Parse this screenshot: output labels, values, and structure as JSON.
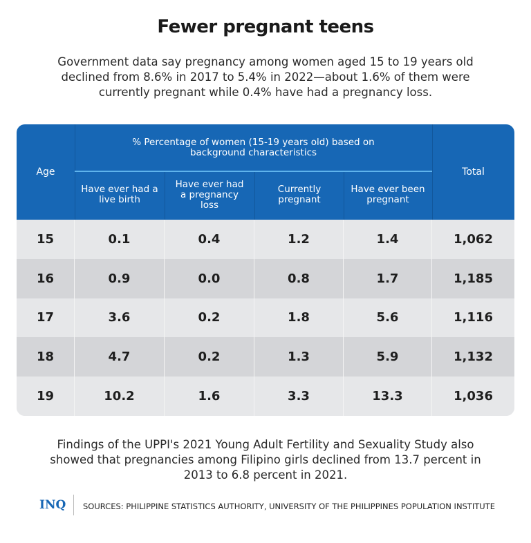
{
  "title": "Fewer pregnant teens",
  "subtitle": "Government data say pregnancy among women aged 15 to 19 years old declined from 8.6% in 2017 to 5.4% in 2022—about 1.6% of them were currently pregnant while 0.4% have had a pregnancy loss.",
  "chart_data": {
    "type": "table",
    "group_header": "% Percentage of women (15-19 years old) based on background characteristics",
    "columns": [
      "Age",
      "Have ever had a live birth",
      "Have ever had a pregnancy loss",
      "Currently pregnant",
      "Have ever been pregnant",
      "Total"
    ],
    "rows": [
      [
        "15",
        "0.1",
        "0.4",
        "1.2",
        "1.4",
        "1,062"
      ],
      [
        "16",
        "0.9",
        "0.0",
        "0.8",
        "1.7",
        "1,185"
      ],
      [
        "17",
        "3.6",
        "0.2",
        "1.8",
        "5.6",
        "1,116"
      ],
      [
        "18",
        "4.7",
        "0.2",
        "1.3",
        "5.9",
        "1,132"
      ],
      [
        "19",
        "10.2",
        "1.6",
        "3.3",
        "13.3",
        "1,036"
      ]
    ],
    "colors": {
      "header": "#1767b5",
      "row_light": "#e6e7e9",
      "row_dark": "#d4d5d8"
    }
  },
  "footer_text": "Findings of the UPPI's 2021 Young Adult Fertility and Sexuality Study also showed that pregnancies among  Filipino girls declined from 13.7 percent in 2013 to 6.8 percent in 2021.",
  "logo": "INQ",
  "sources": "SOURCES: PHILIPPINE STATISTICS AUTHORITY, UNIVERSITY OF THE PHILIPPINES POPULATION INSTITUTE"
}
